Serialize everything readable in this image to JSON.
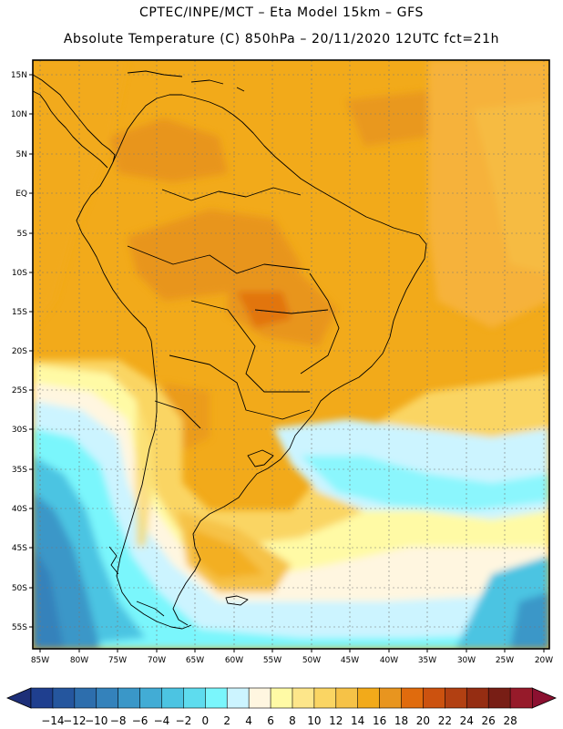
{
  "header": {
    "line1": "CPTEC/INPE/MCT –  Eta Model 15km – GFS",
    "line2": "Absolute Temperature (C) 850hPa – 20/11/2020 12UTC fct=21h"
  },
  "map": {
    "lat_labels": [
      "15N",
      "10N",
      "5N",
      "EQ",
      "5S",
      "10S",
      "15S",
      "20S",
      "25S",
      "30S",
      "35S",
      "40S",
      "45S",
      "50S",
      "55S"
    ],
    "lon_labels": [
      "85W",
      "80W",
      "75W",
      "70W",
      "65W",
      "60W",
      "55W",
      "50W",
      "45W",
      "40W",
      "35W",
      "30W",
      "25W",
      "20W"
    ]
  },
  "colorbar": {
    "labels": [
      "-14",
      "-12",
      "-10",
      "-8",
      "-6",
      "-4",
      "-2",
      "0",
      "2",
      "4",
      "6",
      "8",
      "10",
      "12",
      "14",
      "16",
      "18",
      "20",
      "22",
      "24",
      "26",
      "28"
    ],
    "colors": [
      "#1f3f8f",
      "#25569e",
      "#2d6ead",
      "#3482bb",
      "#3a97c8",
      "#42acd5",
      "#4cc4e2",
      "#5edcee",
      "#7af6fc",
      "#ccf4ff",
      "#fff6e0",
      "#fffaa5",
      "#fde68a",
      "#fad563",
      "#f6c247",
      "#f2aa1a",
      "#e8951f",
      "#e06b0d",
      "#cc520f",
      "#b24012",
      "#952d12",
      "#781e15",
      "#961a2a"
    ],
    "arrow_left_color": "#1d2f78",
    "arrow_right_color": "#8b1030"
  }
}
